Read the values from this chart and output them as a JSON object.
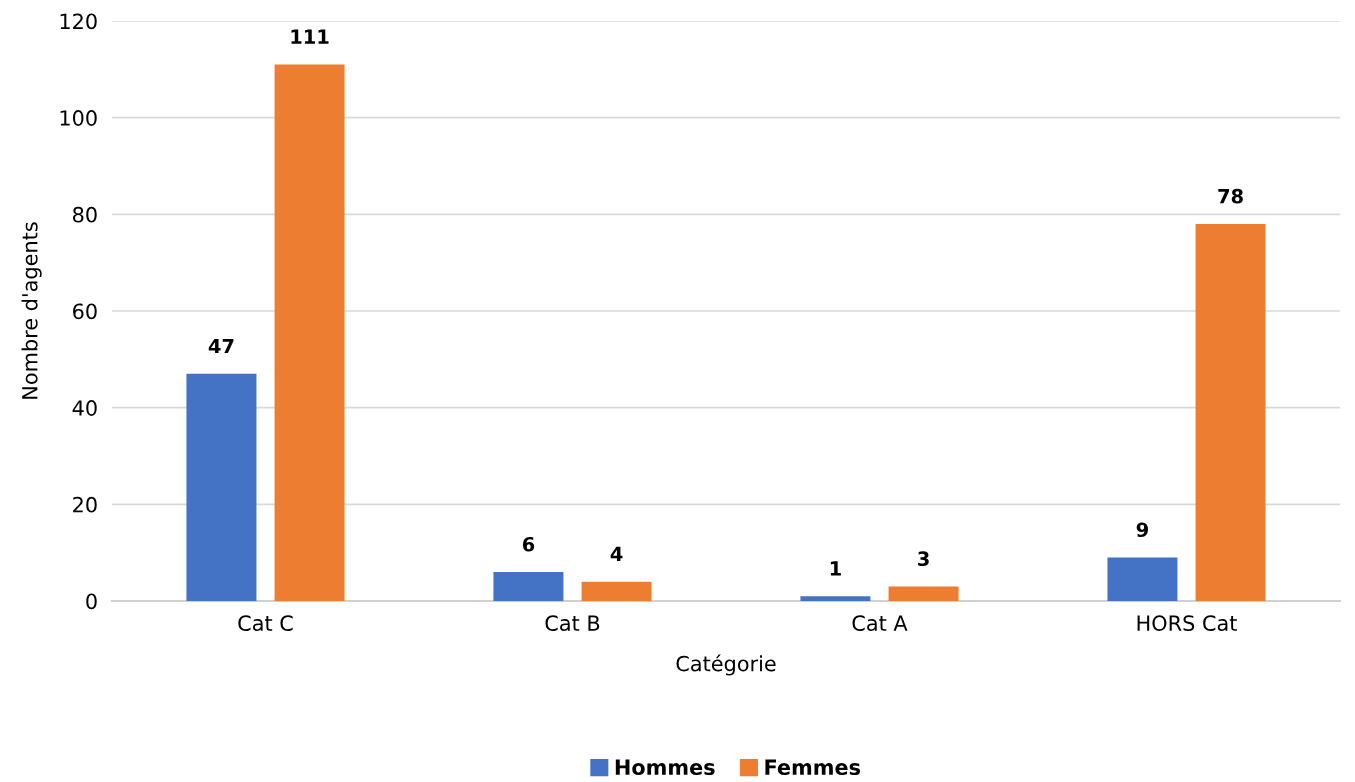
{
  "chart_data": {
    "type": "bar",
    "xlabel": "Catégorie",
    "ylabel": "Nombre d'agents",
    "categories": [
      "Cat C",
      "Cat B",
      "Cat A",
      "HORS Cat"
    ],
    "series": [
      {
        "name": "Hommes",
        "color": "#4472c4",
        "values": [
          47,
          6,
          1,
          9
        ]
      },
      {
        "name": "Femmes",
        "color": "#ed7d31",
        "values": [
          111,
          4,
          3,
          78
        ]
      }
    ],
    "ylim": [
      0,
      120
    ],
    "yticks": [
      0,
      20,
      40,
      60,
      80,
      100,
      120
    ],
    "grid": "y",
    "legend": "bottom",
    "data_labels": true
  }
}
